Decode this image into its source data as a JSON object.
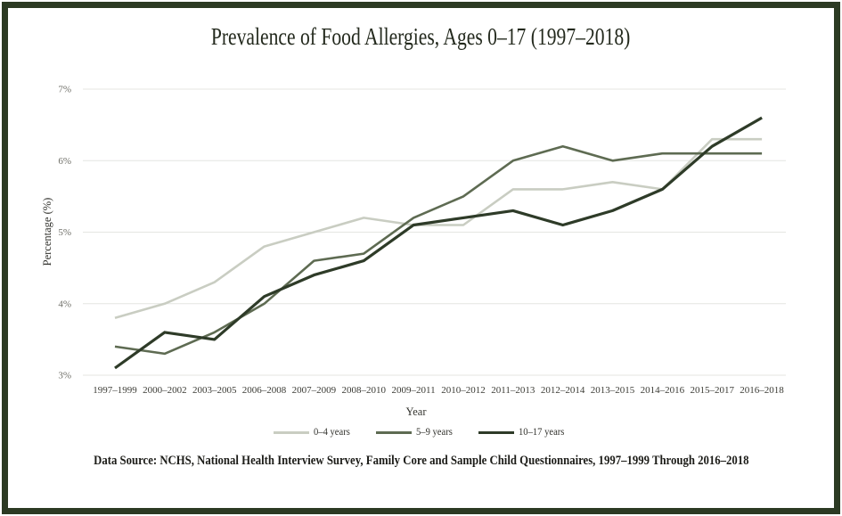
{
  "page": {
    "background": "#ffffff",
    "border_color": "#2c3a23"
  },
  "chart_data": {
    "type": "line",
    "title": "Prevalence of Food Allergies, Ages 0–17 (1997–2018)",
    "xlabel": "Year",
    "ylabel": "Percentage (%)",
    "ylim": [
      3,
      7
    ],
    "grid": true,
    "legend_position": "bottom",
    "ytick_values": [
      3,
      4,
      5,
      6,
      7
    ],
    "ytick_labels": [
      "3%",
      "4%",
      "5%",
      "6%",
      "7%"
    ],
    "categories": [
      "1997–1999",
      "2000–2002",
      "2003–2005",
      "2006–2008",
      "2007–2009",
      "2008–2010",
      "2009–2011",
      "2010–2012",
      "2011–2013",
      "2012–2014",
      "2013–2015",
      "2014–2016",
      "2015–2017",
      "2016–2018"
    ],
    "series": [
      {
        "name": "0–4 years",
        "color": "#c9cdc2",
        "stroke_width": 2.6,
        "values": [
          3.8,
          4.0,
          4.3,
          4.8,
          5.0,
          5.2,
          5.1,
          5.1,
          5.6,
          5.6,
          5.7,
          5.6,
          6.3,
          6.3
        ]
      },
      {
        "name": "5–9 years",
        "color": "#5e6b52",
        "stroke_width": 2.6,
        "values": [
          3.4,
          3.3,
          3.6,
          4.0,
          4.6,
          4.7,
          5.2,
          5.5,
          6.0,
          6.2,
          6.0,
          6.1,
          6.1,
          6.1
        ]
      },
      {
        "name": "10–17 years",
        "color": "#2e3b28",
        "stroke_width": 3.2,
        "values": [
          3.1,
          3.6,
          3.5,
          4.1,
          4.4,
          4.6,
          5.1,
          5.2,
          5.3,
          5.1,
          5.3,
          5.6,
          6.2,
          6.6
        ]
      }
    ],
    "gridline_color": "#e4e6e1"
  },
  "footer": {
    "source": "Data Source: NCHS, National Health Interview Survey, Family Core and Sample Child Questionnaires, 1997–1999 Through 2016–2018"
  }
}
